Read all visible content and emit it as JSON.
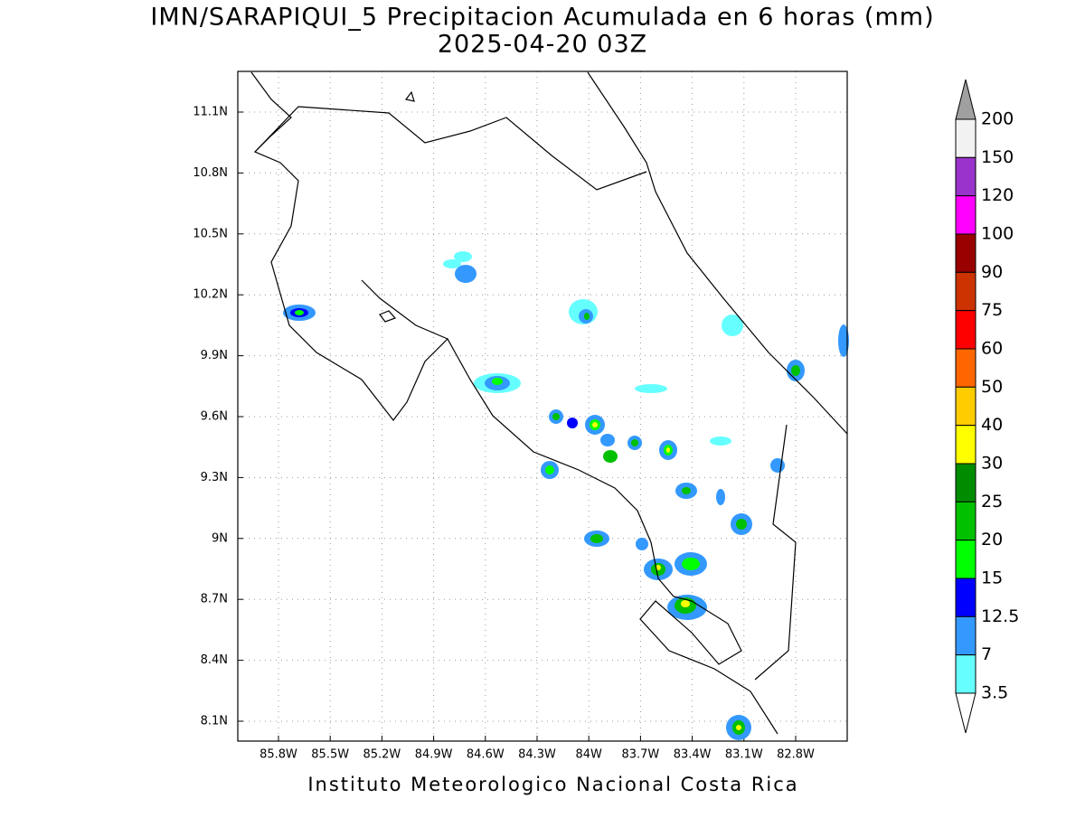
{
  "title": "IMN/SARAPIQUI_5 Precipitacion Acumulada en 6 horas (mm)",
  "subtitle": "2025-04-20 03Z",
  "map": {
    "x_labels": [
      "85.8W",
      "85.5W",
      "85.2W",
      "84.9W",
      "84.6W",
      "84.3W",
      "84W",
      "83.7W",
      "83.4W",
      "83.1W",
      "82.8W"
    ],
    "y_labels": [
      "11.1N",
      "10.8N",
      "10.5N",
      "10.2N",
      "9.9N",
      "9.6N",
      "9.3N",
      "9N",
      "8.7N",
      "8.4N",
      "8.1N"
    ]
  },
  "colorbar": {
    "levels": [
      200,
      150,
      120,
      100,
      90,
      75,
      60,
      50,
      40,
      30,
      25,
      20,
      15,
      12.5,
      7,
      3.5
    ],
    "colors": [
      "#a0a0a0",
      "#f2f2f2",
      "#9933cc",
      "#ff00ff",
      "#990000",
      "#cc3300",
      "#ff0000",
      "#ff6600",
      "#ffcc00",
      "#ffff00",
      "#008c00",
      "#00c000",
      "#00ff00",
      "#0000ff",
      "#3399ff",
      "#66ffff",
      "#ffffff"
    ]
  },
  "footer": "Instituto Meteorologico Nacional Costa Rica"
}
